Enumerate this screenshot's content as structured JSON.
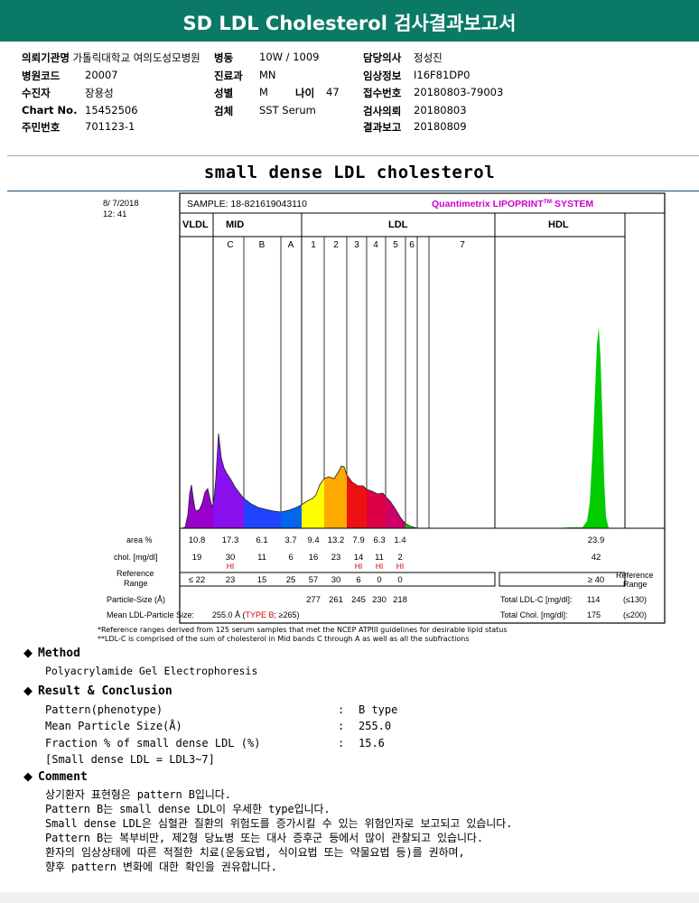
{
  "header": {
    "title": "SD LDL Cholesterol 검사결과보고서"
  },
  "info": {
    "col1": [
      {
        "label": "의뢰기관명",
        "value": "가톨릭대학교 여의도성모병원"
      },
      {
        "label": "병원코드",
        "value": "20007"
      },
      {
        "label": "수진자",
        "value": "장용성"
      },
      {
        "label": "Chart No.",
        "value": "15452506"
      },
      {
        "label": "주민번호",
        "value": "701123-1"
      }
    ],
    "col2": [
      {
        "label": "병동",
        "value": "10W / 1009"
      },
      {
        "label": "진료과",
        "value": "MN"
      },
      {
        "label": "성별",
        "value": "M"
      },
      {
        "label": "검체",
        "value": "SST Serum"
      }
    ],
    "age": {
      "label": "나이",
      "value": "47"
    },
    "col3": [
      {
        "label": "담당의사",
        "value": "정성진"
      },
      {
        "label": "임상정보",
        "value": "I16F81DP0"
      },
      {
        "label": "접수번호",
        "value": "20180803-79003"
      },
      {
        "label": "검사의뢰",
        "value": "20180803"
      },
      {
        "label": "결과보고",
        "value": "20180809"
      }
    ]
  },
  "section_title": "small dense LDL cholesterol",
  "chart_data": {
    "type": "area",
    "date": "8/ 7/2018",
    "time": "12: 41",
    "sample": "SAMPLE:   18-821619043110",
    "system": "Quantimetrix LIPOPRINT",
    "system_tm": "TM",
    "system_suffix": " SYSTEM",
    "groups": [
      "VLDL",
      "MID",
      "LDL",
      "HDL"
    ],
    "bands": [
      "C",
      "B",
      "A",
      "1",
      "2",
      "3",
      "4",
      "5",
      "6",
      "7"
    ],
    "area_label": "area %",
    "area_values": [
      "10.8",
      "17.3",
      "6.1",
      "3.7",
      "9.4",
      "13.2",
      "7.9",
      "6.3",
      "1.4"
    ],
    "area_hdl": "23.9",
    "chol_label": "chol. [mg/dl]",
    "chol_values": [
      "19",
      "30",
      "11",
      "6",
      "16",
      "23",
      "14",
      "11",
      "2"
    ],
    "chol_hdl": "42",
    "hi_flags": [
      "",
      "HI",
      "",
      "",
      "",
      "",
      "HI",
      "HI",
      "HI"
    ],
    "ref_label": [
      "Reference",
      "Range"
    ],
    "ref_values": [
      "≤ 22",
      "23",
      "15",
      "25",
      "57",
      "30",
      "6",
      "0",
      "0"
    ],
    "ref_hdl": "≥ 40",
    "ref_right": [
      "Reference",
      "Range"
    ],
    "particle_label": "Particle-Size (Å)",
    "particle_values": [
      "277",
      "261",
      "245",
      "230",
      "218"
    ],
    "mean_label": "Mean LDL-Particle Size:",
    "mean_value": "255.0 Å",
    "mean_type": "TYPE B",
    "mean_ref": "; ≥265)",
    "total_ldl_label": "Total LDL-C [mg/dl]:",
    "total_ldl_value": "114",
    "total_ldl_ref": "(≤130)",
    "total_chol_label": "Total Chol. [mg/dl]:",
    "total_chol_value": "175",
    "total_chol_ref": "(≤200)",
    "peak_colors": [
      "#9900cc",
      "#8811ee",
      "#2244ff",
      "#0066ee",
      "#ffff00",
      "#ffaa00",
      "#ee1111",
      "#dd0044",
      "#cc0066",
      "#00cc00"
    ]
  },
  "notes": [
    "*Reference ranges derived from 125 serum samples that met the NCEP ATPIII guidelines for desirable lipid status",
    "**LDL-C is comprised of the sum of cholesterol in Mid bands C through A as well as all the subfractions"
  ],
  "method": {
    "title": "Method",
    "text": "Polyacrylamide Gel Electrophoresis"
  },
  "result": {
    "title": "Result & Conclusion",
    "rows": [
      {
        "label": "Pattern(phenotype)",
        "sep": ":",
        "value": "B type"
      },
      {
        "label": "Mean Particle Size(Å)",
        "sep": ":",
        "value": "255.0"
      },
      {
        "label": "Fraction % of small dense LDL (%)",
        "sep": ":",
        "value": "15.6"
      }
    ],
    "footnote": "[Small dense LDL = LDL3~7]"
  },
  "comment": {
    "title": "Comment",
    "lines": [
      "상기환자 표현형은 pattern B입니다.",
      "Pattern B는 small dense LDL이 우세한 type입니다.",
      "Small dense LDL은 심혈관 질환의 위험도를 증가시킬 수 있는 위험인자로 보고되고 있습니다.",
      "Pattern B는 복부비만, 제2형 당뇨병 또는 대사 증후군 등에서 많이 관찰되고 있습니다.",
      "환자의 임상상태에 따른 적절한 치료(운동요법, 식이요법 또는 약물요법 등)를 권하며,",
      "향후 pattern 변화에 대한 확인을 권유합니다."
    ]
  }
}
